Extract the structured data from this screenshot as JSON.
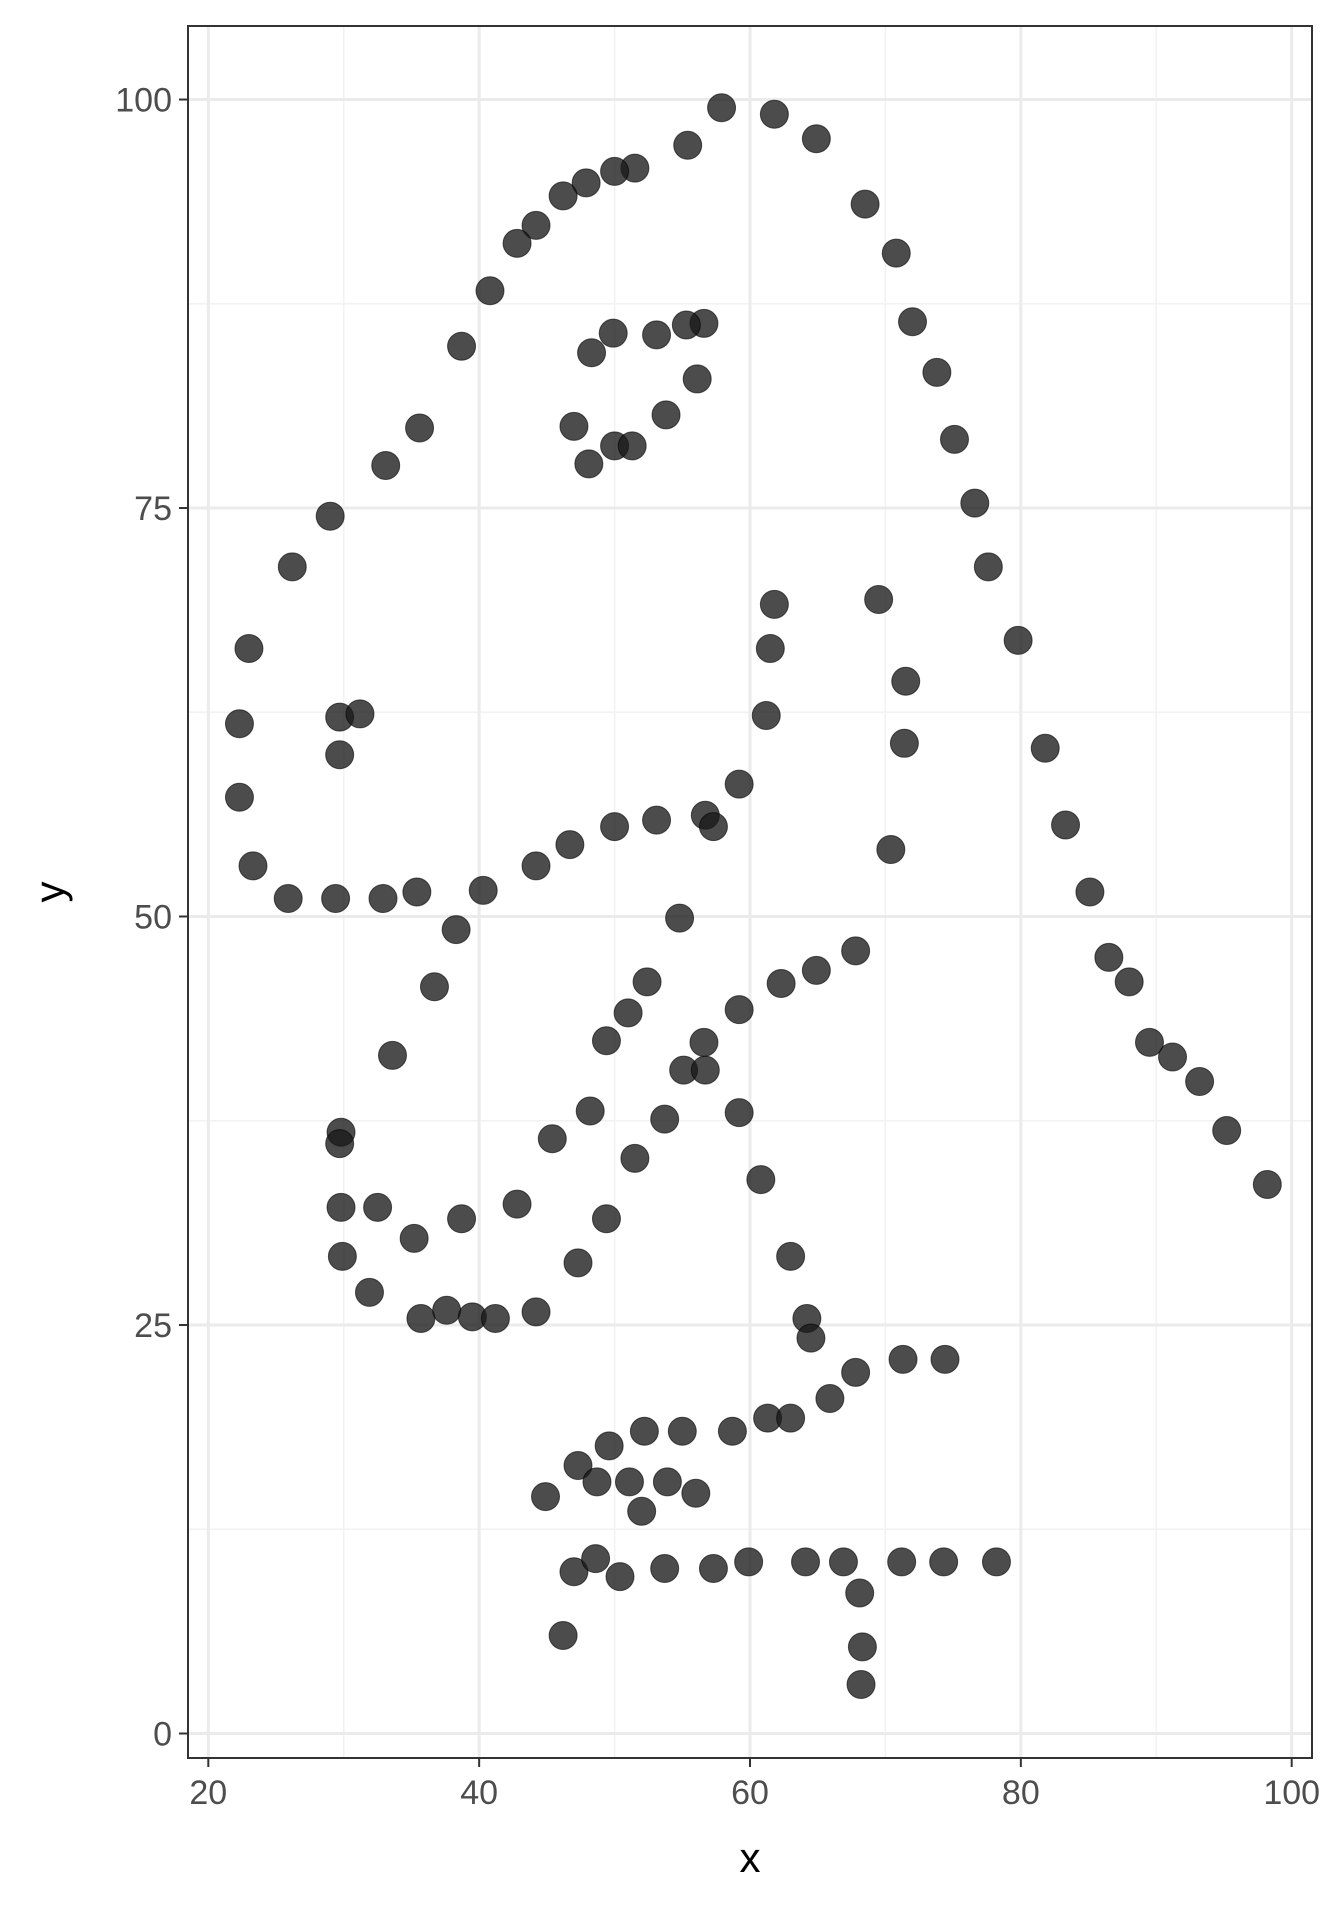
{
  "chart_data": {
    "type": "scatter",
    "title": "",
    "xlabel": "x",
    "ylabel": "y",
    "xlim": [
      18.5,
      101.5
    ],
    "ylim": [
      -1.5,
      104.5
    ],
    "x_ticks": [
      20,
      40,
      60,
      80,
      100
    ],
    "y_ticks": [
      0,
      25,
      50,
      75,
      100
    ],
    "x_tick_labels": [
      "20",
      "40",
      "60",
      "80",
      "100"
    ],
    "y_tick_labels": [
      "0",
      "25",
      "50",
      "75",
      "100"
    ],
    "grid": true,
    "theme": "bw",
    "point_color": "#1a1a1a",
    "points": [
      [
        55.4,
        97.2
      ],
      [
        57.9,
        99.5
      ],
      [
        61.8,
        99.1
      ],
      [
        64.9,
        97.6
      ],
      [
        68.5,
        93.6
      ],
      [
        70.8,
        90.6
      ],
      [
        72.0,
        86.4
      ],
      [
        73.8,
        83.3
      ],
      [
        75.1,
        79.2
      ],
      [
        76.6,
        75.3
      ],
      [
        77.6,
        71.4
      ],
      [
        79.8,
        66.9
      ],
      [
        81.8,
        60.3
      ],
      [
        83.3,
        55.6
      ],
      [
        85.1,
        51.5
      ],
      [
        86.5,
        47.5
      ],
      [
        88.0,
        46.0
      ],
      [
        89.5,
        42.3
      ],
      [
        91.2,
        41.4
      ],
      [
        93.2,
        39.9
      ],
      [
        95.2,
        36.9
      ],
      [
        98.2,
        33.6
      ],
      [
        51.5,
        95.8
      ],
      [
        50.0,
        95.6
      ],
      [
        47.9,
        94.9
      ],
      [
        46.2,
        94.1
      ],
      [
        44.2,
        92.3
      ],
      [
        42.8,
        91.2
      ],
      [
        40.8,
        88.3
      ],
      [
        38.7,
        84.9
      ],
      [
        35.6,
        79.9
      ],
      [
        33.1,
        77.6
      ],
      [
        29.0,
        74.5
      ],
      [
        26.2,
        71.4
      ],
      [
        23.0,
        66.4
      ],
      [
        22.3,
        61.8
      ],
      [
        22.3,
        57.3
      ],
      [
        23.3,
        53.1
      ],
      [
        25.9,
        51.1
      ],
      [
        29.4,
        51.1
      ],
      [
        32.9,
        51.1
      ],
      [
        35.4,
        51.5
      ],
      [
        40.3,
        51.6
      ],
      [
        44.2,
        53.1
      ],
      [
        46.7,
        54.4
      ],
      [
        50.0,
        55.5
      ],
      [
        53.1,
        55.9
      ],
      [
        56.7,
        56.2
      ],
      [
        57.3,
        55.5
      ],
      [
        59.2,
        58.1
      ],
      [
        61.2,
        62.3
      ],
      [
        61.5,
        66.4
      ],
      [
        61.8,
        69.1
      ],
      [
        47.0,
        80.0
      ],
      [
        48.1,
        77.7
      ],
      [
        50.0,
        78.8
      ],
      [
        51.3,
        78.8
      ],
      [
        53.8,
        80.7
      ],
      [
        56.1,
        82.9
      ],
      [
        56.6,
        86.3
      ],
      [
        55.3,
        86.2
      ],
      [
        53.1,
        85.6
      ],
      [
        49.9,
        85.7
      ],
      [
        48.3,
        84.5
      ],
      [
        29.7,
        62.2
      ],
      [
        31.2,
        62.4
      ],
      [
        29.7,
        59.9
      ],
      [
        69.5,
        69.4
      ],
      [
        71.5,
        64.4
      ],
      [
        71.4,
        60.6
      ],
      [
        70.4,
        54.1
      ],
      [
        38.3,
        49.2
      ],
      [
        36.7,
        45.7
      ],
      [
        33.6,
        41.5
      ],
      [
        29.8,
        36.8
      ],
      [
        29.7,
        36.1
      ],
      [
        29.8,
        32.2
      ],
      [
        29.9,
        29.2
      ],
      [
        31.9,
        27.0
      ],
      [
        35.7,
        25.4
      ],
      [
        37.6,
        25.9
      ],
      [
        39.5,
        25.5
      ],
      [
        41.2,
        25.4
      ],
      [
        44.2,
        25.8
      ],
      [
        42.8,
        32.4
      ],
      [
        38.7,
        31.5
      ],
      [
        35.2,
        30.3
      ],
      [
        32.5,
        32.2
      ],
      [
        45.4,
        36.4
      ],
      [
        47.3,
        28.8
      ],
      [
        49.4,
        31.5
      ],
      [
        51.5,
        35.2
      ],
      [
        53.7,
        37.6
      ],
      [
        55.1,
        40.6
      ],
      [
        56.7,
        40.6
      ],
      [
        59.2,
        38.0
      ],
      [
        60.8,
        33.9
      ],
      [
        63.0,
        29.2
      ],
      [
        64.2,
        25.4
      ],
      [
        64.5,
        24.2
      ],
      [
        48.2,
        38.1
      ],
      [
        49.4,
        42.4
      ],
      [
        51.0,
        44.1
      ],
      [
        52.4,
        46.0
      ],
      [
        54.8,
        49.9
      ],
      [
        56.6,
        42.3
      ],
      [
        59.2,
        44.3
      ],
      [
        62.3,
        45.9
      ],
      [
        64.9,
        46.7
      ],
      [
        67.8,
        47.9
      ],
      [
        44.9,
        14.5
      ],
      [
        47.3,
        16.4
      ],
      [
        48.7,
        15.4
      ],
      [
        49.6,
        17.6
      ],
      [
        52.2,
        18.5
      ],
      [
        55.0,
        18.5
      ],
      [
        58.7,
        18.5
      ],
      [
        61.3,
        19.3
      ],
      [
        63.0,
        19.3
      ],
      [
        65.9,
        20.5
      ],
      [
        67.8,
        22.1
      ],
      [
        71.3,
        22.9
      ],
      [
        74.4,
        22.9
      ],
      [
        51.1,
        15.4
      ],
      [
        52.0,
        13.6
      ],
      [
        53.9,
        15.4
      ],
      [
        56.0,
        14.7
      ],
      [
        46.2,
        6.0
      ],
      [
        47.0,
        9.9
      ],
      [
        48.6,
        10.7
      ],
      [
        50.4,
        9.6
      ],
      [
        53.7,
        10.1
      ],
      [
        57.3,
        10.1
      ],
      [
        59.9,
        10.5
      ],
      [
        64.1,
        10.5
      ],
      [
        66.9,
        10.5
      ],
      [
        68.1,
        8.6
      ],
      [
        68.3,
        5.3
      ],
      [
        68.2,
        3.0
      ],
      [
        71.2,
        10.5
      ],
      [
        74.3,
        10.5
      ],
      [
        78.2,
        10.5
      ]
    ]
  }
}
